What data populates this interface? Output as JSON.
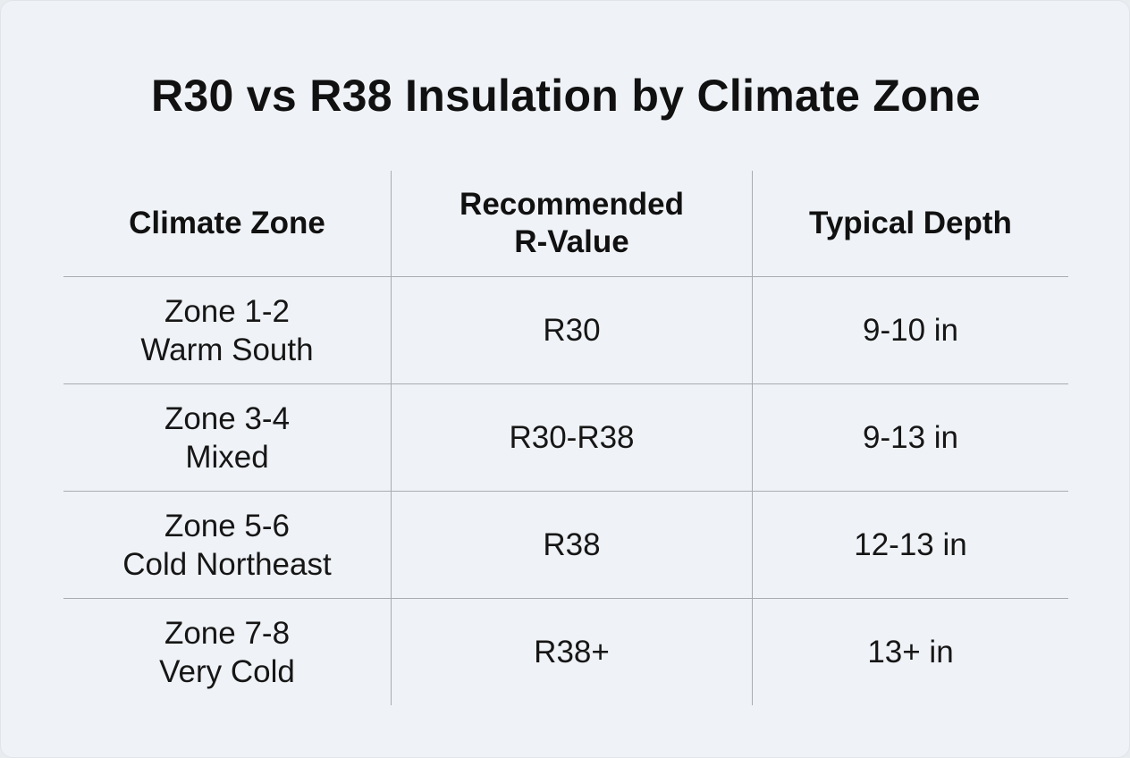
{
  "title": "R30 vs R38 Insulation by Climate Zone",
  "table": {
    "headers": {
      "zone": "Climate Zone",
      "rvalue_line1": "Recommended",
      "rvalue_line2": "R-Value",
      "depth": "Typical Depth"
    },
    "rows": [
      {
        "zone": "Zone 1-2",
        "region": "Warm South",
        "rvalue": "R30",
        "depth": "9-10 in"
      },
      {
        "zone": "Zone 3-4",
        "region": "Mixed",
        "rvalue": "R30-R38",
        "depth": "9-13 in"
      },
      {
        "zone": "Zone 5-6",
        "region": "Cold Northeast",
        "rvalue": "R38",
        "depth": "12-13 in"
      },
      {
        "zone": "Zone 7-8",
        "region": "Very Cold",
        "rvalue": "R38+",
        "depth": "13+ in"
      }
    ]
  }
}
